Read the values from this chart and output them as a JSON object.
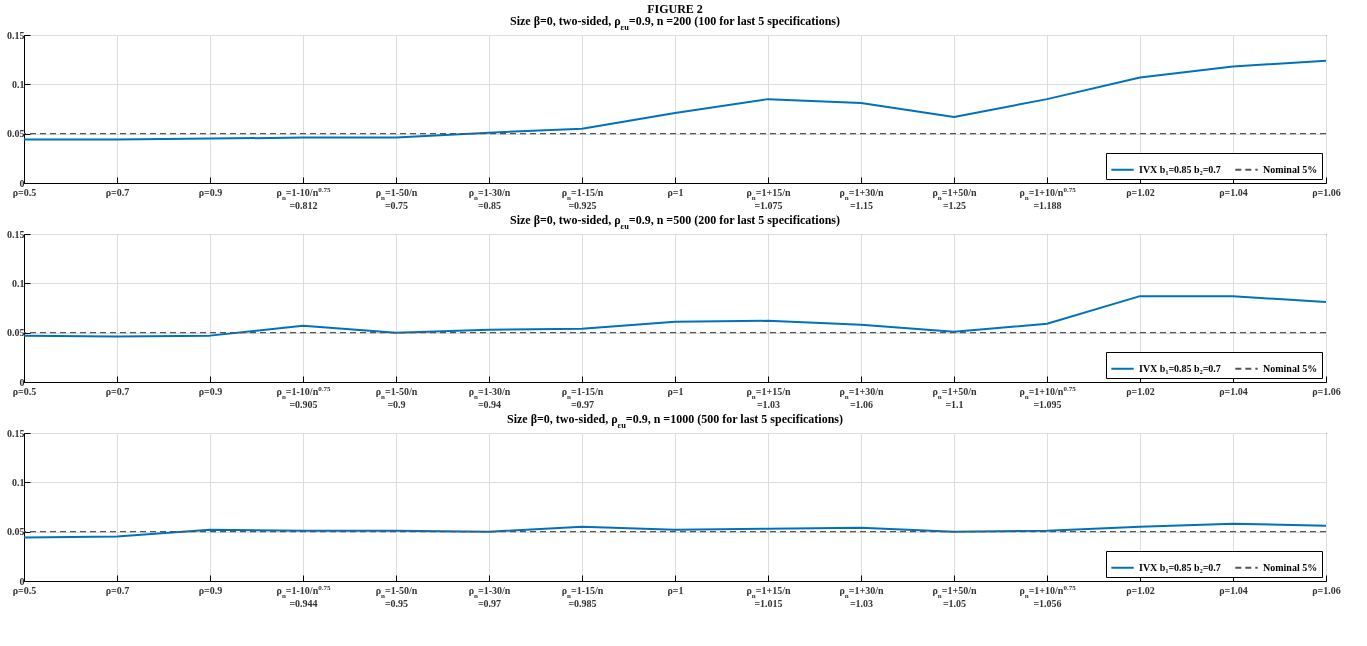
{
  "chart_data": [
    {
      "type": "line",
      "title": "FIGURE 2",
      "subtitle": "Size β=0, two-sided, ρ$_{εu}$=0.9, n =200 (100 for last 5 specifications)",
      "categories": [
        "ρ=0.5",
        "ρ=0.7",
        "ρ=0.9",
        "ρ$_{n}$=1-10/n$^{0.75}$\n=0.812",
        "ρ$_{n}$=1-50/n\n=0.75",
        "ρ$_{n}$=1-30/n\n=0.85",
        "ρ$_{n}$=1-15/n\n=0.925",
        "ρ=1",
        "ρ$_{n}$=1+15/n\n=1.075",
        "ρ$_{n}$=1+30/n\n=1.15",
        "ρ$_{n}$=1+50/n\n=1.25",
        "ρ$_{n}$=1+10/n$^{0.75}$\n=1.188",
        "ρ=1.02",
        "ρ=1.04",
        "ρ=1.06"
      ],
      "series": [
        {
          "name": "IVX b₁=0.85 b₂=0.7",
          "color": "#0072bd",
          "line_style": "solid",
          "values": [
            0.044,
            0.044,
            0.045,
            0.046,
            0.046,
            0.051,
            0.055,
            0.071,
            0.085,
            0.081,
            0.067,
            0.085,
            0.107,
            0.118,
            0.124
          ]
        }
      ],
      "ref_lines": [
        {
          "axis": "y",
          "value": 0.05,
          "label": "Nominal 5%",
          "color": "#555555",
          "line_style": "dashed"
        }
      ],
      "ylim": [
        0,
        0.15
      ],
      "yticks": [
        0,
        0.05,
        0.1,
        0.15
      ],
      "grid": true,
      "legend": "bottom right"
    },
    {
      "type": "line",
      "title": "Size β=0, two-sided, ρ$_{εu}$=0.9, n =500 (200 for last 5 specifications)",
      "categories": [
        "ρ=0.5",
        "ρ=0.7",
        "ρ=0.9",
        "ρ$_{n}$=1-10/n$^{0.75}$\n=0.905",
        "ρ$_{n}$=1-50/n\n=0.9",
        "ρ$_{n}$=1-30/n\n=0.94",
        "ρ$_{n}$=1-15/n\n=0.97",
        "ρ=1",
        "ρ$_{n}$=1+15/n\n=1.03",
        "ρ$_{n}$=1+30/n\n=1.06",
        "ρ$_{n}$=1+50/n\n=1.1",
        "ρ$_{n}$=1+10/n$^{0.75}$\n=1.095",
        "ρ=1.02",
        "ρ=1.04",
        "ρ=1.06"
      ],
      "series": [
        {
          "name": "IVX b₁=0.85 b₂=0.7",
          "color": "#0072bd",
          "line_style": "solid",
          "values": [
            0.047,
            0.046,
            0.047,
            0.057,
            0.05,
            0.053,
            0.054,
            0.061,
            0.062,
            0.058,
            0.051,
            0.059,
            0.087,
            0.087,
            0.081
          ]
        }
      ],
      "ref_lines": [
        {
          "axis": "y",
          "value": 0.05,
          "label": "Nominal 5%",
          "color": "#555555",
          "line_style": "dashed"
        }
      ],
      "ylim": [
        0,
        0.15
      ],
      "yticks": [
        0,
        0.05,
        0.1,
        0.15
      ],
      "grid": true,
      "legend": "bottom right"
    },
    {
      "type": "line",
      "title": "Size β=0, two-sided, ρ$_{εu}$=0.9, n =1000 (500 for last 5 specifications)",
      "categories": [
        "ρ=0.5",
        "ρ=0.7",
        "ρ=0.9",
        "ρ$_{n}$=1-10/n$^{0.75}$\n=0.944",
        "ρ$_{n}$=1-50/n\n=0.95",
        "ρ$_{n}$=1-30/n\n=0.97",
        "ρ$_{n}$=1-15/n\n=0.985",
        "ρ=1",
        "ρ$_{n}$=1+15/n\n=1.015",
        "ρ$_{n}$=1+30/n\n=1.03",
        "ρ$_{n}$=1+50/n\n=1.05",
        "ρ$_{n}$=1+10/n$^{0.75}$\n=1.056",
        "ρ=1.02",
        "ρ=1.04",
        "ρ=1.06"
      ],
      "series": [
        {
          "name": "IVX b₁=0.85 b₂=0.7",
          "color": "#0072bd",
          "line_style": "solid",
          "values": [
            0.044,
            0.045,
            0.052,
            0.051,
            0.051,
            0.05,
            0.055,
            0.052,
            0.053,
            0.054,
            0.05,
            0.051,
            0.055,
            0.058,
            0.056
          ]
        }
      ],
      "ref_lines": [
        {
          "axis": "y",
          "value": 0.05,
          "label": "Nominal 5%",
          "color": "#555555",
          "line_style": "dashed"
        }
      ],
      "ylim": [
        0,
        0.15
      ],
      "yticks": [
        0,
        0.05,
        0.1,
        0.15
      ],
      "grid": true,
      "legend": "bottom right"
    }
  ]
}
